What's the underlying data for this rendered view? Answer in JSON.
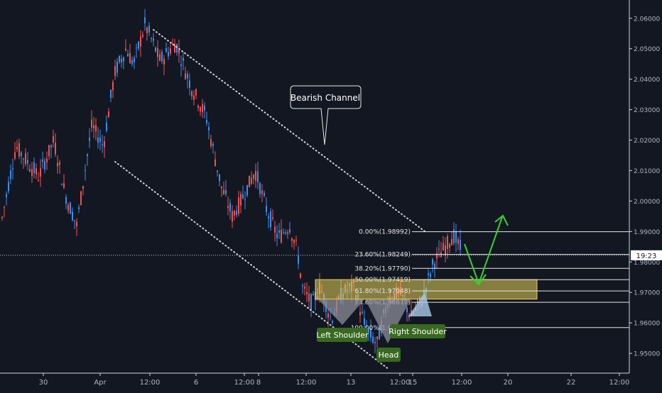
{
  "chart_data": {
    "type": "candlestick",
    "title": "",
    "ylim": [
      1.9435,
      2.066
    ],
    "y_ticks": [
      {
        "value": 2.06,
        "label": "2.06000"
      },
      {
        "value": 2.05,
        "label": "2.05000"
      },
      {
        "value": 2.04,
        "label": "2.04000"
      },
      {
        "value": 2.03,
        "label": "2.03000"
      },
      {
        "value": 2.02,
        "label": "2.02000"
      },
      {
        "value": 2.01,
        "label": "2.01000"
      },
      {
        "value": 2.0,
        "label": "2.00000"
      },
      {
        "value": 1.99,
        "label": "1.99000"
      },
      {
        "value": 1.98,
        "label": "1.98000"
      },
      {
        "value": 1.97,
        "label": "1.97000"
      },
      {
        "value": 1.96,
        "label": "1.96000"
      },
      {
        "value": 1.95,
        "label": "1.95000"
      }
    ],
    "x_ticks": [
      "30",
      "Apr",
      "12:00",
      "6",
      "12:00",
      "8",
      "12:00",
      "13",
      "12:00",
      "15",
      "12:00",
      "20",
      "22",
      "12:00"
    ],
    "current_price": {
      "value": 1.9822,
      "label": "19:23"
    },
    "colors": {
      "up": "#3e8ee8",
      "down": "#ef5350",
      "background": "#131722",
      "axis_text": "#b2b5be",
      "arrow": "#39d12b",
      "zone": "#e6d25a"
    },
    "price_path": [
      {
        "t": 0,
        "p": 1.992
      },
      {
        "t": 0.4,
        "p": 2.018
      },
      {
        "t": 1.0,
        "p": 2.008
      },
      {
        "t": 1.4,
        "p": 2.02
      },
      {
        "t": 1.7,
        "p": 2.002
      },
      {
        "t": 2.0,
        "p": 1.992
      },
      {
        "t": 2.4,
        "p": 2.025
      },
      {
        "t": 2.7,
        "p": 2.018
      },
      {
        "t": 3.0,
        "p": 2.042
      },
      {
        "t": 3.3,
        "p": 2.05
      },
      {
        "t": 3.5,
        "p": 2.045
      },
      {
        "t": 3.8,
        "p": 2.058
      },
      {
        "t": 4.2,
        "p": 2.046
      },
      {
        "t": 4.6,
        "p": 2.052
      },
      {
        "t": 5.0,
        "p": 2.038
      },
      {
        "t": 5.4,
        "p": 2.028
      },
      {
        "t": 5.8,
        "p": 2.005
      },
      {
        "t": 6.1,
        "p": 1.995
      },
      {
        "t": 6.4,
        "p": 2.002
      },
      {
        "t": 6.7,
        "p": 2.01
      },
      {
        "t": 7.0,
        "p": 1.997
      },
      {
        "t": 7.3,
        "p": 1.988
      },
      {
        "t": 7.6,
        "p": 1.992
      },
      {
        "t": 7.8,
        "p": 1.984
      },
      {
        "t": 7.95,
        "p": 1.971
      },
      {
        "t": 8.2,
        "p": 1.966
      },
      {
        "t": 8.4,
        "p": 1.972
      },
      {
        "t": 8.7,
        "p": 1.961
      },
      {
        "t": 9.0,
        "p": 1.97
      },
      {
        "t": 9.3,
        "p": 1.972
      },
      {
        "t": 9.6,
        "p": 1.958
      },
      {
        "t": 9.9,
        "p": 1.953
      },
      {
        "t": 10.2,
        "p": 1.968
      },
      {
        "t": 10.5,
        "p": 1.97
      },
      {
        "t": 10.8,
        "p": 1.962
      },
      {
        "t": 11.1,
        "p": 1.968
      },
      {
        "t": 11.4,
        "p": 1.98
      },
      {
        "t": 11.7,
        "p": 1.985
      },
      {
        "t": 11.9,
        "p": 1.989
      },
      {
        "t": 12.15,
        "p": 1.983
      }
    ],
    "fibonacci": [
      {
        "label": "0.00%(1.98992)",
        "value": 1.98992
      },
      {
        "label": "23.60%(1.98249)",
        "value": 1.98249
      },
      {
        "label": "38.20%(1.97790)",
        "value": 1.9779
      },
      {
        "label": "50.00%(1.97419)",
        "value": 1.97419
      },
      {
        "label": "61.80%(1.97048)",
        "value": 1.97048
      },
      {
        "label": "73.60%(1.96677)",
        "value": 1.96677
      },
      {
        "label": "100.00%(1.95846)",
        "value": 1.95846
      }
    ],
    "zone": {
      "from": 1.9678,
      "to": 1.9742
    },
    "annotations": [
      {
        "text": "Bearish Channel",
        "kind": "callout"
      },
      {
        "text": "Left Shoulder",
        "kind": "label"
      },
      {
        "text": "Head",
        "kind": "label"
      },
      {
        "text": "Right Shoulder",
        "kind": "label"
      }
    ]
  }
}
